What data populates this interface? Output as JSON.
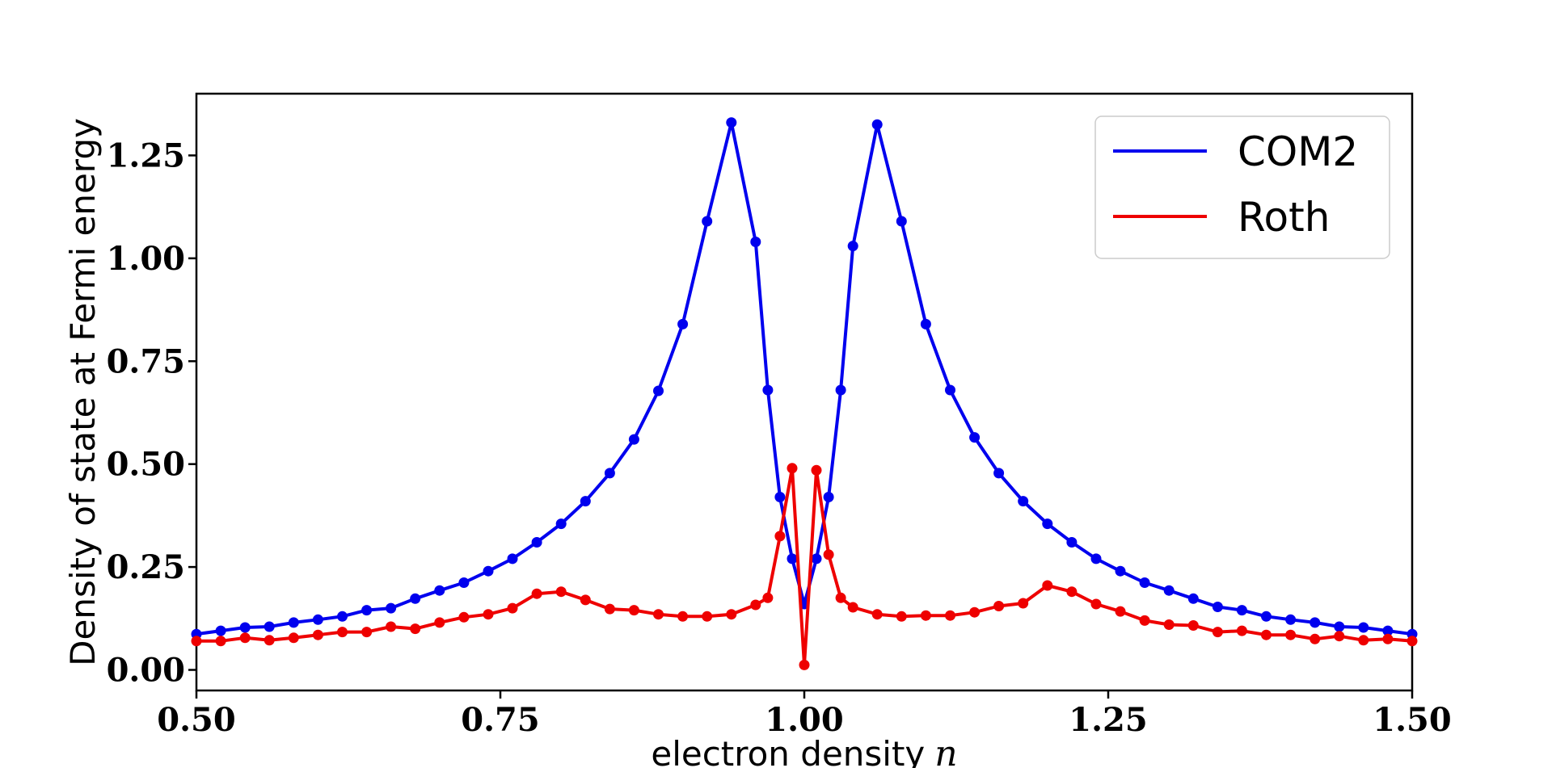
{
  "chart_data": {
    "type": "line",
    "title": "",
    "xlabel": "electron density",
    "xlabel_var": "n",
    "ylabel": "Density of state at Fermi energy",
    "xlim": [
      0.5,
      1.5
    ],
    "ylim": [
      -0.05,
      1.4
    ],
    "xticks": [
      0.5,
      0.75,
      1.0,
      1.25,
      1.5
    ],
    "xtick_labels": [
      "0.50",
      "0.75",
      "1.00",
      "1.25",
      "1.50"
    ],
    "yticks": [
      0.0,
      0.25,
      0.5,
      0.75,
      1.0,
      1.25
    ],
    "ytick_labels": [
      "0.00",
      "0.25",
      "0.50",
      "0.75",
      "1.00",
      "1.25"
    ],
    "legend_position": "top-right",
    "grid": false,
    "x": [
      0.5,
      0.52,
      0.54,
      0.56,
      0.58,
      0.6,
      0.62,
      0.64,
      0.66,
      0.68,
      0.7,
      0.72,
      0.74,
      0.76,
      0.78,
      0.8,
      0.82,
      0.84,
      0.86,
      0.88,
      0.9,
      0.92,
      0.94,
      0.96,
      0.97,
      0.98,
      0.99,
      1.0,
      1.01,
      1.02,
      1.03,
      1.04,
      1.06,
      1.08,
      1.1,
      1.12,
      1.14,
      1.16,
      1.18,
      1.2,
      1.22,
      1.24,
      1.26,
      1.28,
      1.3,
      1.32,
      1.34,
      1.36,
      1.38,
      1.4,
      1.42,
      1.44,
      1.46,
      1.48,
      1.5
    ],
    "series": [
      {
        "name": "COM2",
        "color": "#0000ee",
        "values": [
          0.087,
          0.095,
          0.103,
          0.105,
          0.115,
          0.122,
          0.13,
          0.145,
          0.15,
          0.173,
          0.193,
          0.212,
          0.24,
          0.27,
          0.31,
          0.355,
          0.41,
          0.478,
          0.56,
          0.678,
          0.84,
          1.09,
          1.33,
          1.04,
          0.68,
          0.42,
          0.27,
          0.16,
          0.27,
          0.42,
          0.68,
          1.03,
          1.325,
          1.09,
          0.84,
          0.68,
          0.565,
          0.478,
          0.41,
          0.355,
          0.31,
          0.27,
          0.24,
          0.212,
          0.193,
          0.173,
          0.153,
          0.145,
          0.13,
          0.122,
          0.115,
          0.105,
          0.103,
          0.095,
          0.087
        ]
      },
      {
        "name": "Roth",
        "color": "#ee0000",
        "values": [
          0.07,
          0.07,
          0.078,
          0.072,
          0.078,
          0.085,
          0.092,
          0.092,
          0.105,
          0.1,
          0.115,
          0.128,
          0.135,
          0.15,
          0.185,
          0.19,
          0.17,
          0.148,
          0.145,
          0.135,
          0.13,
          0.13,
          0.135,
          0.158,
          0.175,
          0.325,
          0.49,
          0.012,
          0.485,
          0.28,
          0.175,
          0.152,
          0.135,
          0.13,
          0.132,
          0.132,
          0.14,
          0.155,
          0.162,
          0.205,
          0.19,
          0.16,
          0.142,
          0.12,
          0.11,
          0.108,
          0.092,
          0.095,
          0.085,
          0.085,
          0.075,
          0.082,
          0.072,
          0.075,
          0.07
        ]
      }
    ]
  }
}
